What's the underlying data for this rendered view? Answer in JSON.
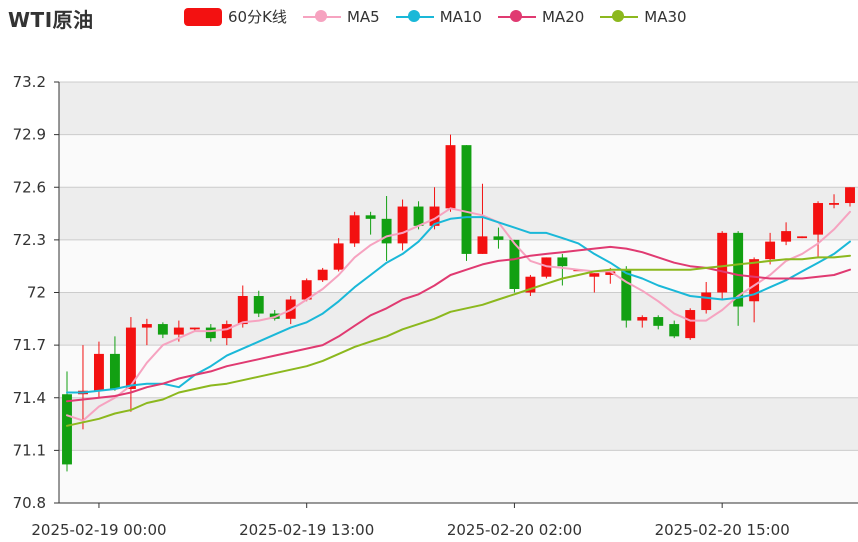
{
  "title": "WTI原油",
  "legend": [
    {
      "label": "60分K线",
      "color": "#f31111",
      "kind": "box"
    },
    {
      "label": "MA5",
      "color": "#f6a3c0",
      "kind": "line"
    },
    {
      "label": "MA10",
      "color": "#1ab8d8",
      "kind": "line"
    },
    {
      "label": "MA20",
      "color": "#e03a71",
      "kind": "line"
    },
    {
      "label": "MA30",
      "color": "#8cb81e",
      "kind": "line"
    }
  ],
  "colors": {
    "up": "#f31111",
    "down": "#12a012",
    "band": "#ededed",
    "grid": "#cccccc",
    "axis": "#333333"
  },
  "chart_data": {
    "type": "candlestick",
    "title": "WTI原油",
    "ylim": [
      70.8,
      73.2
    ],
    "yticks": [
      "73.2",
      "72.9",
      "72.6",
      "72.3",
      "72",
      "71.7",
      "71.4",
      "71.1",
      "70.8"
    ],
    "xticks": [
      {
        "label": "2025-02-19 00:00",
        "index": 2
      },
      {
        "label": "2025-02-19 13:00",
        "index": 15
      },
      {
        "label": "2025-02-20 02:00",
        "index": 28
      },
      {
        "label": "2025-02-20 15:00",
        "index": 41
      }
    ],
    "candles": [
      [
        71.42,
        71.02,
        71.55,
        70.98
      ],
      [
        71.42,
        71.44,
        71.7,
        71.22
      ],
      [
        71.44,
        71.65,
        71.72,
        71.4
      ],
      [
        71.65,
        71.45,
        71.75,
        71.44
      ],
      [
        71.45,
        71.8,
        71.86,
        71.32
      ],
      [
        71.8,
        71.82,
        71.85,
        71.7
      ],
      [
        71.82,
        71.76,
        71.83,
        71.74
      ],
      [
        71.76,
        71.8,
        71.84,
        71.72
      ],
      [
        71.79,
        71.8,
        71.8,
        71.78
      ],
      [
        71.8,
        71.74,
        71.82,
        71.72
      ],
      [
        71.74,
        71.82,
        71.84,
        71.7
      ],
      [
        71.82,
        71.98,
        72.04,
        71.8
      ],
      [
        71.98,
        71.88,
        72.01,
        71.86
      ],
      [
        71.88,
        71.85,
        71.9,
        71.84
      ],
      [
        71.85,
        71.96,
        71.98,
        71.82
      ],
      [
        71.96,
        72.07,
        72.08,
        71.95
      ],
      [
        72.07,
        72.13,
        72.14,
        72.06
      ],
      [
        72.13,
        72.28,
        72.31,
        72.12
      ],
      [
        72.28,
        72.44,
        72.46,
        72.26
      ],
      [
        72.44,
        72.42,
        72.46,
        72.33
      ],
      [
        72.42,
        72.28,
        72.55,
        72.18
      ],
      [
        72.28,
        72.49,
        72.53,
        72.24
      ],
      [
        72.49,
        72.38,
        72.52,
        72.36
      ],
      [
        72.38,
        72.49,
        72.6,
        72.36
      ],
      [
        72.48,
        72.84,
        72.9,
        72.46
      ],
      [
        72.84,
        72.22,
        72.84,
        72.18
      ],
      [
        72.22,
        72.32,
        72.62,
        72.22
      ],
      [
        72.32,
        72.3,
        72.37,
        72.25
      ],
      [
        72.3,
        72.02,
        72.3,
        72.0
      ],
      [
        72.0,
        72.09,
        72.1,
        71.98
      ],
      [
        72.09,
        72.2,
        72.2,
        72.08
      ],
      [
        72.2,
        72.15,
        72.22,
        72.04
      ],
      [
        72.13,
        72.13,
        72.13,
        72.13
      ],
      [
        72.09,
        72.11,
        72.11,
        72.0
      ],
      [
        72.1,
        72.12,
        72.14,
        72.05
      ],
      [
        72.13,
        71.84,
        72.15,
        71.8
      ],
      [
        71.84,
        71.86,
        71.87,
        71.8
      ],
      [
        71.86,
        71.81,
        71.87,
        71.79
      ],
      [
        71.82,
        71.75,
        71.84,
        71.74
      ],
      [
        71.74,
        71.9,
        71.91,
        71.73
      ],
      [
        71.9,
        72.0,
        72.06,
        71.88
      ],
      [
        72.0,
        72.34,
        72.35,
        71.96
      ],
      [
        72.34,
        71.92,
        72.35,
        71.81
      ],
      [
        71.95,
        72.19,
        72.2,
        71.83
      ],
      [
        72.19,
        72.29,
        72.34,
        72.16
      ],
      [
        72.29,
        72.35,
        72.4,
        72.27
      ],
      [
        72.31,
        72.32,
        72.32,
        72.31
      ],
      [
        72.33,
        72.51,
        72.52,
        72.2
      ],
      [
        72.5,
        72.51,
        72.56,
        72.48
      ],
      [
        72.51,
        72.6,
        72.6,
        72.49
      ]
    ],
    "series": [
      {
        "name": "MA5",
        "color": "#f6a3c0",
        "values": [
          71.3,
          71.27,
          71.35,
          71.4,
          71.47,
          71.6,
          71.7,
          71.74,
          71.78,
          71.78,
          71.79,
          71.83,
          71.84,
          71.86,
          71.9,
          71.96,
          72.02,
          72.1,
          72.2,
          72.27,
          72.32,
          72.34,
          72.38,
          72.42,
          72.48,
          72.46,
          72.44,
          72.4,
          72.28,
          72.18,
          72.15,
          72.14,
          72.13,
          72.12,
          72.12,
          72.06,
          72.01,
          71.95,
          71.88,
          71.84,
          71.84,
          71.9,
          71.98,
          72.04,
          72.1,
          72.18,
          72.22,
          72.28,
          72.36,
          72.46
        ]
      },
      {
        "name": "MA10",
        "color": "#1ab8d8",
        "values": [
          71.43,
          71.43,
          71.44,
          71.45,
          71.47,
          71.48,
          71.48,
          71.46,
          71.53,
          71.58,
          71.64,
          71.68,
          71.72,
          71.76,
          71.8,
          71.83,
          71.88,
          71.95,
          72.03,
          72.1,
          72.17,
          72.22,
          72.29,
          72.39,
          72.42,
          72.43,
          72.43,
          72.4,
          72.37,
          72.34,
          72.34,
          72.31,
          72.28,
          72.22,
          72.17,
          72.11,
          72.08,
          72.04,
          72.01,
          71.98,
          71.97,
          71.96,
          71.97,
          71.99,
          72.03,
          72.07,
          72.12,
          72.17,
          72.22,
          72.29
        ]
      },
      {
        "name": "MA20",
        "color": "#e03a71",
        "values": [
          71.38,
          71.39,
          71.4,
          71.41,
          71.43,
          71.46,
          71.48,
          71.51,
          71.53,
          71.55,
          71.58,
          71.6,
          71.62,
          71.64,
          71.66,
          71.68,
          71.7,
          71.75,
          71.81,
          71.87,
          71.91,
          71.96,
          71.99,
          72.04,
          72.1,
          72.13,
          72.16,
          72.18,
          72.19,
          72.21,
          72.22,
          72.23,
          72.24,
          72.25,
          72.26,
          72.25,
          72.23,
          72.2,
          72.17,
          72.15,
          72.14,
          72.12,
          72.1,
          72.09,
          72.08,
          72.08,
          72.08,
          72.09,
          72.1,
          72.13
        ]
      },
      {
        "name": "MA30",
        "color": "#8cb81e",
        "values": [
          71.24,
          71.26,
          71.28,
          71.31,
          71.33,
          71.37,
          71.39,
          71.43,
          71.45,
          71.47,
          71.48,
          71.5,
          71.52,
          71.54,
          71.56,
          71.58,
          71.61,
          71.65,
          71.69,
          71.72,
          71.75,
          71.79,
          71.82,
          71.85,
          71.89,
          71.91,
          71.93,
          71.96,
          71.99,
          72.02,
          72.05,
          72.08,
          72.1,
          72.12,
          72.13,
          72.13,
          72.13,
          72.13,
          72.13,
          72.13,
          72.14,
          72.15,
          72.16,
          72.17,
          72.18,
          72.19,
          72.19,
          72.2,
          72.2,
          72.21
        ]
      }
    ]
  }
}
